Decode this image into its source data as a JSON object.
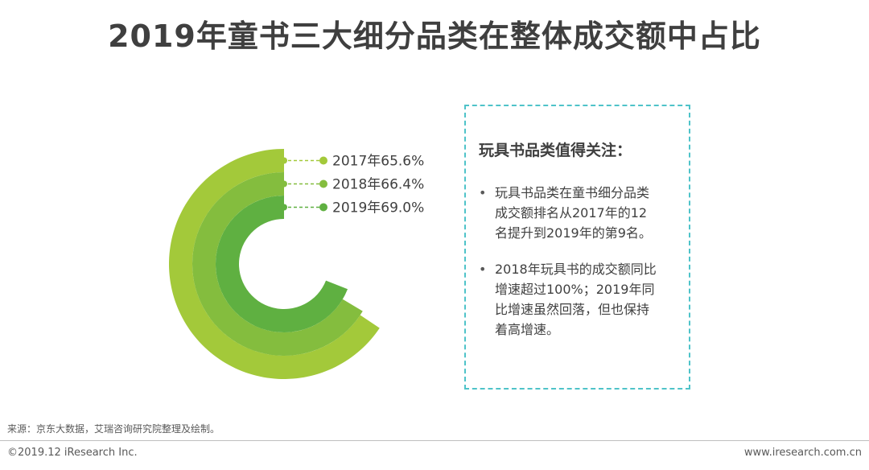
{
  "title": "2019年童书三大细分品类在整体成交额中占比",
  "chart_data": {
    "type": "radial-bar",
    "series": [
      {
        "label": "2017年65.6%",
        "value": 65.6,
        "color": "#a3c93a",
        "dot_color": "#a3c93a"
      },
      {
        "label": "2018年66.4%",
        "value": 66.4,
        "color": "#84bd3e",
        "dot_color": "#84bd3e"
      },
      {
        "label": "2019年69.0%",
        "value": 69.0,
        "color": "#5fb041",
        "dot_color": "#5fb041"
      }
    ]
  },
  "info_box": {
    "heading": "玩具书品类值得关注：",
    "bullets": [
      {
        "line1": "玩具书品类在童书细分品类",
        "line2": "成交额排名从2017年的12",
        "line3": "名提升到2019年的第9名。"
      },
      {
        "line1": "2018年玩具书的成交额同比",
        "line2": "增速超过100%；2019年同",
        "line3": "比增速虽然回落，但也保持",
        "line4": "着高增速。"
      }
    ],
    "bullet_symbol": "•"
  },
  "footer": {
    "source": "来源：京东大数据，艾瑞咨询研究院整理及绘制。",
    "copyright": "©2019.12 iResearch Inc.",
    "website": "www.iresearch.com.cn"
  }
}
